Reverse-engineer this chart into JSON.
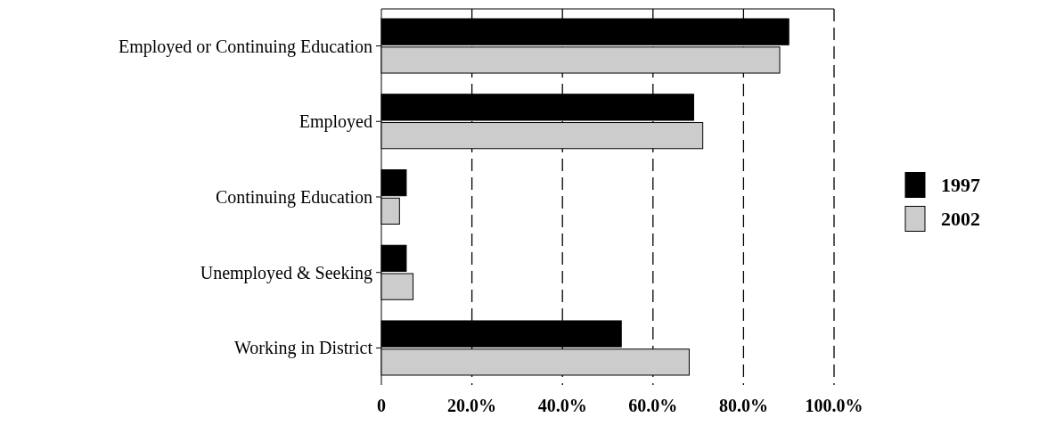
{
  "chart_data": {
    "type": "bar",
    "orientation": "horizontal",
    "categories": [
      "Employed or Continuing Education",
      "Employed",
      "Continuing Education",
      "Unemployed & Seeking",
      "Working in District"
    ],
    "series": [
      {
        "name": "1997",
        "color": "#000000",
        "values": [
          90,
          69,
          5.5,
          5.5,
          53
        ]
      },
      {
        "name": "2002",
        "color": "#cccccc",
        "values": [
          88,
          71,
          4,
          7,
          68
        ]
      }
    ],
    "xlim": [
      0,
      100
    ],
    "xticks": [
      0,
      {
        "value": 20,
        "label": "20.0%"
      },
      {
        "value": 40,
        "label": "40.0%"
      },
      {
        "value": 60,
        "label": "60.0%"
      },
      {
        "value": 80,
        "label": "80.0%"
      },
      {
        "value": 100,
        "label": "100.0%"
      }
    ],
    "grid": "x",
    "legend": "right"
  }
}
